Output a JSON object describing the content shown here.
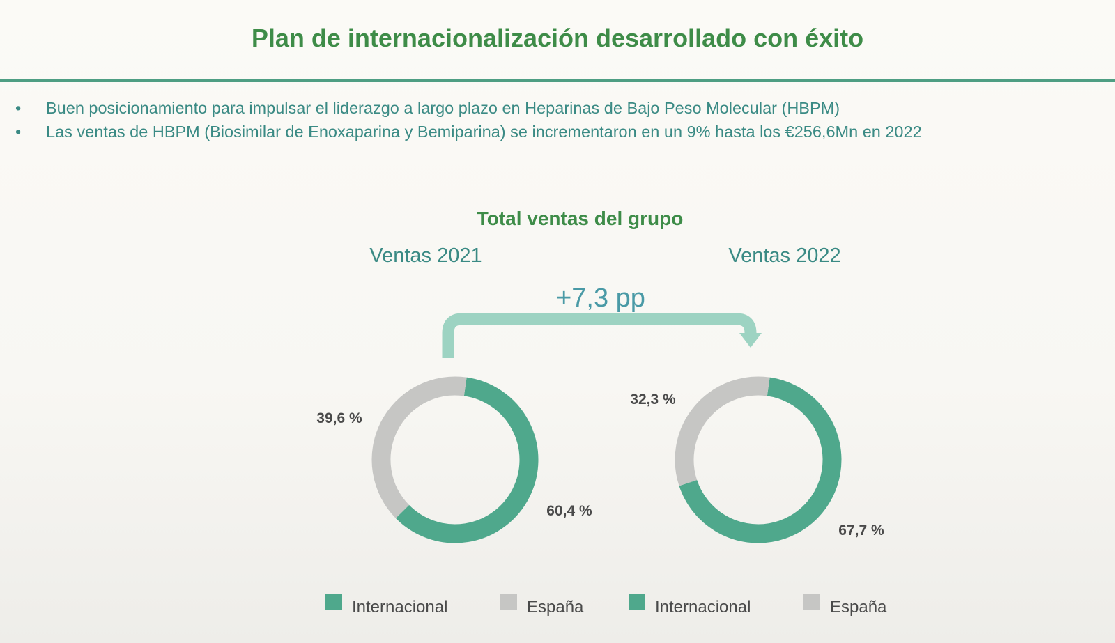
{
  "title": "Plan de internacionalización desarrollado con éxito",
  "bullets": [
    "Buen posicionamiento para impulsar el liderazgo a largo plazo en Heparinas de Bajo Peso Molecular (HBPM)",
    "Las ventas de HBPM (Biosimilar de Enoxaparina y Bemiparina) se incrementaron en un 9% hasta los €256,6Mn en 2022"
  ],
  "bullet_glyph": "•",
  "colors": {
    "title": "#3e8c48",
    "text": "#3a8a84",
    "internacional": "#4fa88c",
    "espana": "#c6c6c4",
    "arrow": "#9dd3c2",
    "pp_label": "#4a9aa6",
    "value_label": "#4a4a4a"
  },
  "chart_data": {
    "type": "donut",
    "title": "Total ventas del grupo",
    "annotation": "+7,3 pp",
    "charts": [
      {
        "subtitle": "Ventas 2021",
        "slices": [
          {
            "name": "Internacional",
            "value": 60.4,
            "label": "60,4 %"
          },
          {
            "name": "España",
            "value": 39.6,
            "label": "39,6 %"
          }
        ],
        "legend": [
          "Internacional",
          "España"
        ]
      },
      {
        "subtitle": "Ventas 2022",
        "slices": [
          {
            "name": "Internacional",
            "value": 67.7,
            "label": "67,7 %"
          },
          {
            "name": "España",
            "value": 32.3,
            "label": "32,3 %"
          }
        ],
        "legend": [
          "Internacional",
          "España"
        ]
      }
    ]
  }
}
